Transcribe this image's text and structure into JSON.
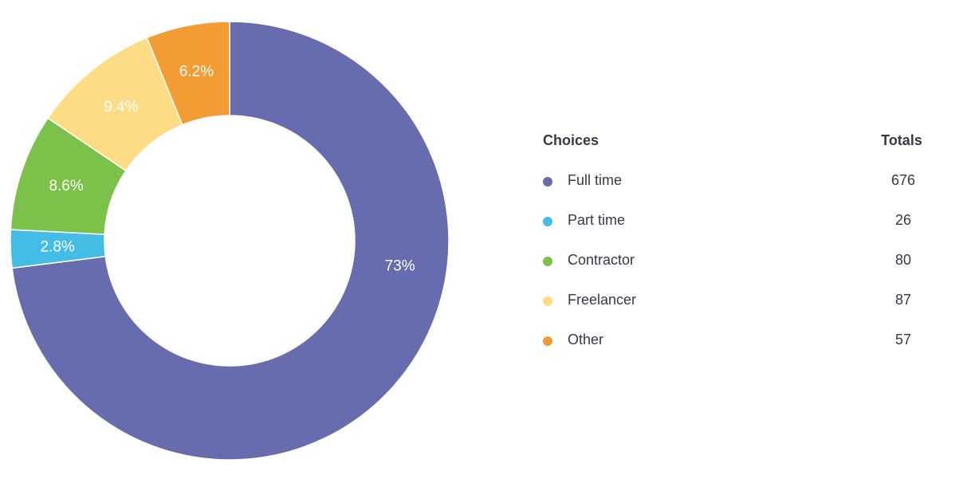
{
  "chart_data": {
    "type": "pie",
    "style": "donut",
    "legend_placement": "right",
    "legend": {
      "header_choices": "Choices",
      "header_totals": "Totals"
    },
    "slices": [
      {
        "label": "Full time",
        "value": 676,
        "pct_label": "73%",
        "color": "#666cae"
      },
      {
        "label": "Part time",
        "value": 26,
        "pct_label": "2.8%",
        "color": "#43bde6"
      },
      {
        "label": "Contractor",
        "value": 80,
        "pct_label": "8.6%",
        "color": "#7bc14a"
      },
      {
        "label": "Freelancer",
        "value": 87,
        "pct_label": "9.4%",
        "color": "#fedb85"
      },
      {
        "label": "Other",
        "value": 57,
        "pct_label": "6.2%",
        "color": "#f39c34"
      }
    ]
  }
}
